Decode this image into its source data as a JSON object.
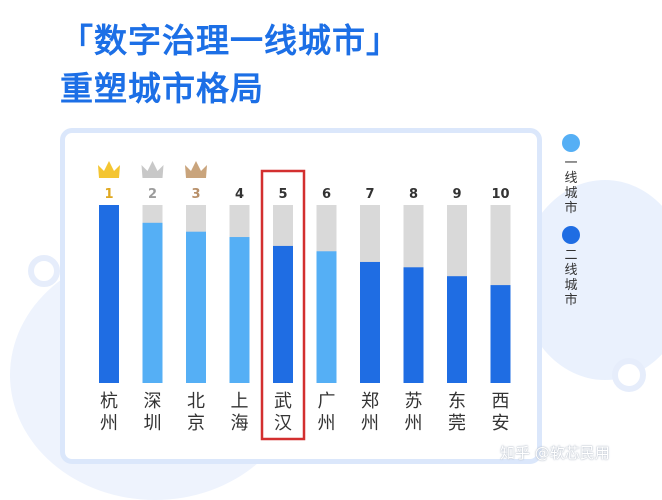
{
  "title_line1": "「数字治理一线城市」",
  "title_line2": "重塑城市格局",
  "legend": [
    {
      "label": "一线城市",
      "color": "#55aff5"
    },
    {
      "label": "二线城市",
      "color": "#1f6de3"
    }
  ],
  "watermark": "知乎 @软芯民用",
  "colors": {
    "first_tier": "#55aff5",
    "second_tier": "#1f6de3",
    "bar_track": "#d9d9d9",
    "highlight_box": "#d32f2f",
    "crown_gold": "#f4c531",
    "crown_silver": "#c8c8c8",
    "crown_bronze": "#c9a47c"
  },
  "chart_data": {
    "type": "bar",
    "categories": [
      "杭州",
      "深圳",
      "北京",
      "上海",
      "武汉",
      "广州",
      "郑州",
      "苏州",
      "东莞",
      "西安"
    ],
    "ranks": [
      "1",
      "2",
      "3",
      "4",
      "5",
      "6",
      "7",
      "8",
      "9",
      "10"
    ],
    "values": [
      100,
      90,
      85,
      82,
      77,
      74,
      68,
      65,
      60,
      55
    ],
    "tiers": [
      "二线城市",
      "一线城市",
      "一线城市",
      "一线城市",
      "二线城市",
      "一线城市",
      "二线城市",
      "二线城市",
      "二线城市",
      "二线城市"
    ],
    "crowns": [
      "crown-gold-icon",
      "crown-silver-icon",
      "crown-bronze-icon"
    ],
    "highlighted": "武汉",
    "ylim": [
      0,
      100
    ],
    "title": "",
    "xlabel": "",
    "ylabel": "",
    "grid": false,
    "legend_position": "right"
  }
}
